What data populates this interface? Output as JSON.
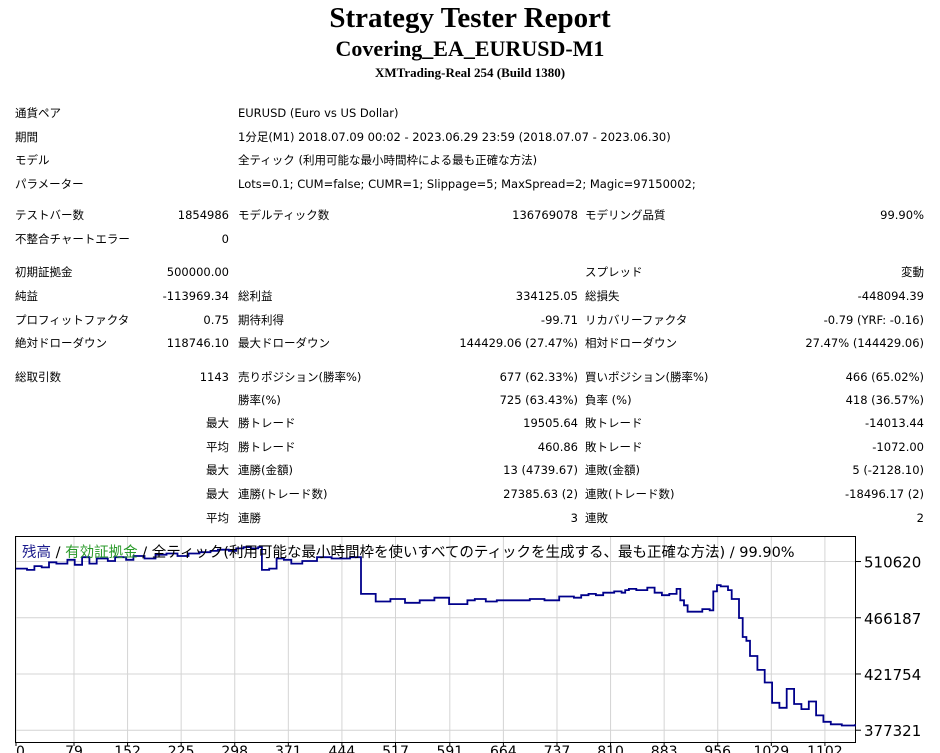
{
  "header": {
    "title": "Strategy Tester Report",
    "subtitle": "Covering_EA_EURUSD-M1",
    "build": "XMTrading-Real 254 (Build 1380)"
  },
  "settings": {
    "symbol_label": "通貨ペア",
    "symbol_value": "EURUSD (Euro vs US Dollar)",
    "period_label": "期間",
    "period_value": "1分足(M1) 2018.07.09 00:02 - 2023.06.29 23:59 (2018.07.07 - 2023.06.30)",
    "model_label": "モデル",
    "model_value": "全ティック (利用可能な最小時間枠による最も正確な方法)",
    "params_label": "パラメーター",
    "params_value": "Lots=0.1; CUM=false; CUMR=1; Slippage=5; MaxSpread=2; Magic=97150002;"
  },
  "stats": {
    "bars_label": "テストバー数",
    "bars_value": "1854986",
    "ticks_label": "モデルティック数",
    "ticks_value": "136769078",
    "quality_label": "モデリング品質",
    "quality_value": "99.90%",
    "mismatch_label": "不整合チャートエラー",
    "mismatch_value": "0",
    "deposit_label": "初期証拠金",
    "deposit_value": "500000.00",
    "spread_label": "スプレッド",
    "spread_value": "変動",
    "net_label": "純益",
    "net_value": "-113969.34",
    "gross_profit_label": "総利益",
    "gross_profit_value": "334125.05",
    "gross_loss_label": "総損失",
    "gross_loss_value": "-448094.39",
    "pf_label": "プロフィットファクタ",
    "pf_value": "0.75",
    "expected_label": "期待利得",
    "expected_value": "-99.71",
    "recovery_label": "リカバリーファクタ",
    "recovery_value": "-0.79 (YRF: -0.16)",
    "abs_dd_label": "絶対ドローダウン",
    "abs_dd_value": "118746.10",
    "max_dd_label": "最大ドローダウン",
    "max_dd_value": "144429.06 (27.47%)",
    "rel_dd_label": "相対ドローダウン",
    "rel_dd_value": "27.47% (144429.06)",
    "total_trades_label": "総取引数",
    "total_trades_value": "1143",
    "short_label": "売りポジション(勝率%)",
    "short_value": "677 (62.33%)",
    "long_label": "買いポジション(勝率%)",
    "long_value": "466 (65.02%)",
    "win_label": "勝率(%)",
    "win_value": "725 (63.43%)",
    "loss_label": "負率 (%)",
    "loss_value": "418 (36.57%)",
    "max_prefix": "最大",
    "avg_prefix": "平均",
    "largest_win_label": "勝トレード",
    "largest_win_value": "19505.64",
    "largest_loss_label": "敗トレード",
    "largest_loss_value": "-14013.44",
    "avg_win_label": "勝トレード",
    "avg_win_value": "460.86",
    "avg_loss_label": "敗トレード",
    "avg_loss_value": "-1072.00",
    "consec_wins_amt_label": "連勝(金額)",
    "consec_wins_amt_value": "13 (4739.67)",
    "consec_loss_amt_label": "連敗(金額)",
    "consec_loss_amt_value": "5 (-2128.10)",
    "consec_wins_cnt_label": "連勝(トレード数)",
    "consec_wins_cnt_value": "27385.63 (2)",
    "consec_loss_cnt_label": "連敗(トレード数)",
    "consec_loss_cnt_value": "-18496.17 (2)",
    "avg_consec_win_label": "連勝",
    "avg_consec_win_value": "3",
    "avg_consec_loss_label": "連敗",
    "avg_consec_loss_value": "2"
  },
  "chart_title": {
    "part1": "残高",
    "sep1": " / ",
    "part2": "有効証拠金",
    "sep2": " / ",
    "part3": "全ティック(利用可能な最小時間枠を使いすべてのティックを生成する、最も正確な方法) / 99.90%"
  },
  "chart_data": {
    "type": "line",
    "xlabel": "",
    "ylabel": "",
    "xlim": [
      0,
      1143
    ],
    "ylim": [
      368000,
      530000
    ],
    "xticks": [
      0,
      79,
      152,
      225,
      298,
      371,
      444,
      517,
      591,
      664,
      737,
      810,
      883,
      956,
      1029,
      1102
    ],
    "yticks": [
      510620,
      466187,
      421754,
      377321
    ],
    "colors": {
      "balance": "#00008b",
      "frame": "#000000",
      "grid": "#d4d4d4"
    },
    "grid": true,
    "series": [
      {
        "name": "残高",
        "x": [
          0,
          15,
          25,
          35,
          45,
          55,
          70,
          80,
          90,
          100,
          110,
          125,
          135,
          150,
          160,
          175,
          190,
          205,
          220,
          235,
          250,
          265,
          275,
          290,
          300,
          310,
          320,
          330,
          335,
          345,
          355,
          365,
          375,
          390,
          410,
          430,
          455,
          470,
          490,
          510,
          530,
          550,
          570,
          590,
          615,
          625,
          640,
          655,
          680,
          700,
          720,
          740,
          760,
          770,
          780,
          790,
          800,
          815,
          825,
          830,
          835,
          845,
          860,
          870,
          880,
          890,
          900,
          905,
          910,
          915,
          925,
          935,
          945,
          950,
          955,
          960,
          970,
          975,
          985,
          990,
          995,
          1000,
          1010,
          1020,
          1030,
          1040,
          1050,
          1060,
          1070,
          1080,
          1090,
          1100,
          1110,
          1125,
          1143
        ],
        "y": [
          505000,
          504000,
          507000,
          506000,
          510000,
          509000,
          512000,
          508000,
          514000,
          509000,
          513000,
          511000,
          514000,
          512000,
          515000,
          513000,
          516000,
          517000,
          515000,
          517000,
          518000,
          519000,
          520000,
          519000,
          521000,
          522000,
          521000,
          522000,
          504000,
          505000,
          513000,
          512000,
          509000,
          511000,
          514000,
          513000,
          514000,
          485000,
          479000,
          481000,
          478000,
          480000,
          482000,
          477000,
          480000,
          481000,
          479000,
          480000,
          480000,
          481000,
          480000,
          483000,
          482000,
          484000,
          485000,
          484000,
          486000,
          487000,
          486000,
          488000,
          489000,
          488000,
          490000,
          486000,
          484000,
          485000,
          489000,
          480000,
          476000,
          471000,
          471000,
          473000,
          472000,
          487000,
          492000,
          491000,
          488000,
          481000,
          466000,
          451000,
          448000,
          436000,
          425000,
          415000,
          399000,
          395000,
          410000,
          398000,
          394000,
          400000,
          389000,
          384000,
          382000,
          381000,
          382000
        ]
      }
    ]
  }
}
